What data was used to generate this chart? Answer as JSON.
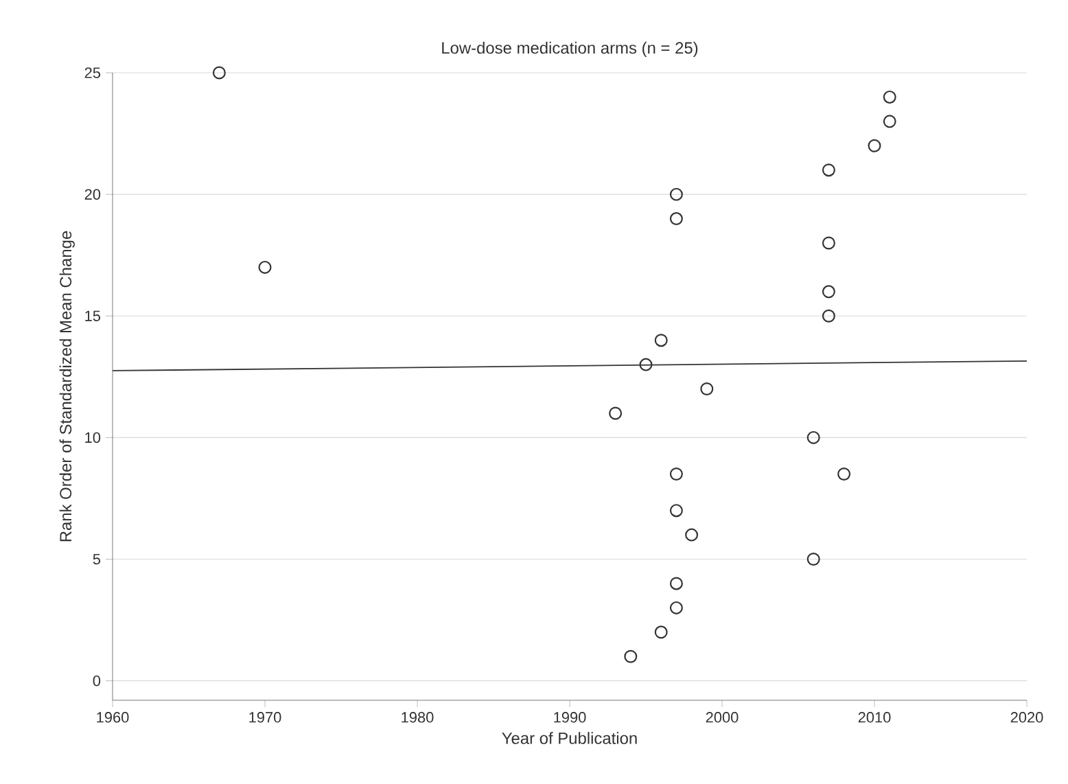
{
  "chart_data": {
    "type": "scatter",
    "title": "Low-dose medication arms (n = 25)",
    "xlabel": "Year of Publication",
    "ylabel": "Rank Order of Standardized Mean Change",
    "xlim": [
      1960,
      2020
    ],
    "ylim": [
      -0.8,
      25
    ],
    "xticks": [
      1960,
      1970,
      1980,
      1990,
      2000,
      2010,
      2020
    ],
    "yticks": [
      0,
      5,
      10,
      15,
      20,
      25
    ],
    "grid": "y",
    "series": [
      {
        "marker": "circle",
        "color": "#333333",
        "x": [
          1967,
          1970,
          1997,
          1997,
          1996,
          1995,
          1999,
          1993,
          1997,
          1997,
          1998,
          1997,
          1997,
          1996,
          1994,
          2011,
          2011,
          2010,
          2007,
          2007,
          2007,
          2007,
          2006,
          2008,
          2006
        ],
        "values": [
          25,
          17,
          20,
          19,
          14,
          13,
          12,
          11,
          8.5,
          7,
          6,
          4,
          3,
          2,
          1,
          24,
          23,
          22,
          21,
          18,
          16,
          15,
          10,
          8.5,
          5
        ]
      },
      {
        "type": "line",
        "marker": "none",
        "color": "#333333",
        "x": [
          1960,
          2020
        ],
        "values": [
          12.75,
          13.15
        ]
      }
    ]
  }
}
